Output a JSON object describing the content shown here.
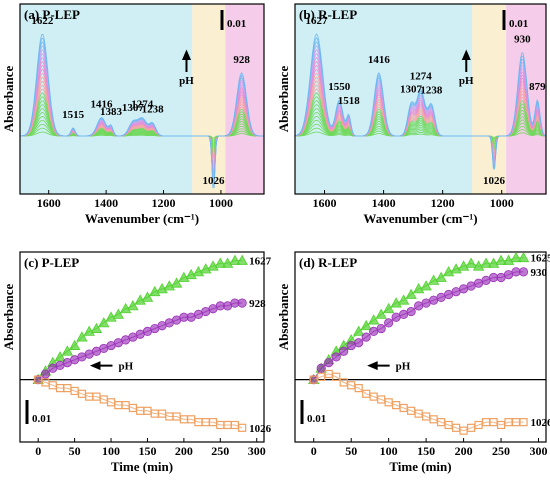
{
  "chart_data": [
    {
      "id": "a",
      "type": "line",
      "title": "(a) P-LEP",
      "xlabel": "Wavenumber (cm⁻¹)",
      "ylabel": "Absorbance",
      "xlim": [
        1700,
        850
      ],
      "xticks": [
        1600,
        1400,
        1200,
        1000
      ],
      "scale_bar": "0.01",
      "ph_label": "pH",
      "ph_arrow": "up",
      "shaded_regions": [
        {
          "from": 1700,
          "to": 1100,
          "color": "#cfeff5"
        },
        {
          "from": 1100,
          "to": 985,
          "color": "#fbefd2"
        },
        {
          "from": 985,
          "to": 850,
          "color": "#f5cdea"
        }
      ],
      "annotations": [
        "1622",
        "1515",
        "1416",
        "1383",
        "1307",
        "1274",
        "1238",
        "1026",
        "928"
      ],
      "peaks": [
        {
          "x": 1622,
          "amp": 1.0,
          "w": 28
        },
        {
          "x": 1515,
          "amp": 0.08,
          "w": 10
        },
        {
          "x": 1416,
          "amp": 0.18,
          "w": 22
        },
        {
          "x": 1383,
          "amp": 0.09,
          "w": 10
        },
        {
          "x": 1307,
          "amp": 0.13,
          "w": 20
        },
        {
          "x": 1274,
          "amp": 0.17,
          "w": 22
        },
        {
          "x": 1238,
          "amp": 0.12,
          "w": 16
        },
        {
          "x": 1026,
          "amp": -0.55,
          "w": 7
        },
        {
          "x": 928,
          "amp": 0.62,
          "w": 24
        }
      ],
      "n_curves": 26,
      "curve_colors": [
        "#6fd85a",
        "#f4a3a3",
        "#e98ad3",
        "#6fb8f0",
        "#c9a0f0"
      ]
    },
    {
      "id": "b",
      "type": "line",
      "title": "(b) R-LEP",
      "xlabel": "Wavenumber (cm⁻¹)",
      "ylabel": "Absorbance",
      "xlim": [
        1700,
        850
      ],
      "xticks": [
        1600,
        1400,
        1200,
        1000
      ],
      "scale_bar": "0.01",
      "ph_label": "pH",
      "ph_arrow": "up",
      "shaded_regions": [
        {
          "from": 1700,
          "to": 1100,
          "color": "#cfeff5"
        },
        {
          "from": 1100,
          "to": 985,
          "color": "#fbefd2"
        },
        {
          "from": 985,
          "to": 850,
          "color": "#f5cdea"
        }
      ],
      "annotations": [
        "1627",
        "1550",
        "1518",
        "1416",
        "1307",
        "1274",
        "1238",
        "1026",
        "930",
        "879"
      ],
      "peaks": [
        {
          "x": 1627,
          "amp": 1.0,
          "w": 30
        },
        {
          "x": 1550,
          "amp": 0.35,
          "w": 18
        },
        {
          "x": 1518,
          "amp": 0.2,
          "w": 10
        },
        {
          "x": 1416,
          "amp": 0.62,
          "w": 22
        },
        {
          "x": 1307,
          "amp": 0.3,
          "w": 16
        },
        {
          "x": 1274,
          "amp": 0.45,
          "w": 20
        },
        {
          "x": 1238,
          "amp": 0.3,
          "w": 16
        },
        {
          "x": 1026,
          "amp": -0.35,
          "w": 7
        },
        {
          "x": 930,
          "amp": 0.82,
          "w": 22
        },
        {
          "x": 879,
          "amp": 0.35,
          "w": 12
        }
      ],
      "n_curves": 26,
      "curve_colors": [
        "#6fd85a",
        "#f4a3a3",
        "#e98ad3",
        "#6fb8f0",
        "#c9a0f0"
      ]
    },
    {
      "id": "c",
      "type": "scatter",
      "title": "(c) P-LEP",
      "xlabel": "Time (min)",
      "ylabel": "Absorbance",
      "xlim": [
        -25,
        310
      ],
      "ylim": [
        -0.022,
        0.045
      ],
      "xticks": [
        0,
        50,
        100,
        150,
        200,
        250,
        300
      ],
      "scale_bar": "0.01",
      "ph_label": "pH",
      "ph_arrow": "left",
      "series": [
        {
          "name": "1627",
          "marker": "triangle",
          "color": "#4fd12c",
          "x": [
            0,
            10,
            20,
            30,
            40,
            50,
            60,
            70,
            80,
            90,
            100,
            110,
            120,
            130,
            140,
            150,
            160,
            170,
            180,
            190,
            200,
            210,
            220,
            230,
            240,
            250,
            260,
            270,
            280
          ],
          "values": [
            0.0,
            0.003,
            0.006,
            0.008,
            0.01,
            0.012,
            0.015,
            0.017,
            0.018,
            0.02,
            0.022,
            0.023,
            0.025,
            0.026,
            0.028,
            0.029,
            0.031,
            0.032,
            0.033,
            0.034,
            0.036,
            0.037,
            0.038,
            0.039,
            0.04,
            0.041,
            0.041,
            0.042,
            0.042
          ]
        },
        {
          "name": "928",
          "marker": "circle",
          "color": "#9a2fb8",
          "x": [
            0,
            10,
            20,
            30,
            40,
            50,
            60,
            70,
            80,
            90,
            100,
            110,
            120,
            130,
            140,
            150,
            160,
            170,
            180,
            190,
            200,
            210,
            220,
            230,
            240,
            250,
            260,
            270,
            280
          ],
          "values": [
            0.0,
            0.002,
            0.004,
            0.005,
            0.006,
            0.007,
            0.008,
            0.009,
            0.01,
            0.011,
            0.012,
            0.013,
            0.014,
            0.015,
            0.016,
            0.017,
            0.018,
            0.019,
            0.02,
            0.021,
            0.022,
            0.022,
            0.023,
            0.024,
            0.025,
            0.026,
            0.026,
            0.027,
            0.027
          ]
        },
        {
          "name": "1026",
          "marker": "square",
          "color": "#f0a060",
          "x": [
            0,
            10,
            20,
            30,
            40,
            50,
            60,
            70,
            80,
            90,
            100,
            110,
            120,
            130,
            140,
            150,
            160,
            170,
            180,
            190,
            200,
            210,
            220,
            230,
            240,
            250,
            260,
            270,
            280
          ],
          "values": [
            0.0,
            -0.001,
            -0.002,
            -0.003,
            -0.003,
            -0.004,
            -0.005,
            -0.006,
            -0.006,
            -0.007,
            -0.008,
            -0.009,
            -0.009,
            -0.01,
            -0.011,
            -0.011,
            -0.012,
            -0.012,
            -0.013,
            -0.013,
            -0.014,
            -0.014,
            -0.015,
            -0.015,
            -0.015,
            -0.016,
            -0.016,
            -0.016,
            -0.017
          ]
        }
      ]
    },
    {
      "id": "d",
      "type": "scatter",
      "title": "(d) R-LEP",
      "xlabel": "Time (min)",
      "ylabel": "Absorbance",
      "xlim": [
        -25,
        310
      ],
      "ylim": [
        -0.022,
        0.045
      ],
      "xticks": [
        0,
        50,
        100,
        150,
        200,
        250,
        300
      ],
      "scale_bar": "0.01",
      "ph_label": "pH",
      "ph_arrow": "left",
      "series": [
        {
          "name": "1625",
          "marker": "triangle",
          "color": "#4fd12c",
          "x": [
            0,
            10,
            20,
            30,
            40,
            50,
            60,
            70,
            80,
            90,
            100,
            110,
            120,
            130,
            140,
            150,
            160,
            170,
            180,
            190,
            200,
            210,
            220,
            230,
            240,
            250,
            260,
            270,
            280
          ],
          "values": [
            0.0,
            0.004,
            0.007,
            0.01,
            0.012,
            0.014,
            0.017,
            0.019,
            0.021,
            0.023,
            0.025,
            0.027,
            0.028,
            0.03,
            0.032,
            0.033,
            0.035,
            0.036,
            0.038,
            0.039,
            0.04,
            0.041,
            0.04,
            0.041,
            0.041,
            0.042,
            0.042,
            0.043,
            0.043
          ]
        },
        {
          "name": "930",
          "marker": "circle",
          "color": "#9a2fb8",
          "x": [
            0,
            10,
            20,
            30,
            40,
            50,
            60,
            70,
            80,
            90,
            100,
            110,
            120,
            130,
            140,
            150,
            160,
            170,
            180,
            190,
            200,
            210,
            220,
            230,
            240,
            250,
            260,
            270,
            280
          ],
          "values": [
            0.0,
            0.004,
            0.006,
            0.008,
            0.01,
            0.012,
            0.013,
            0.015,
            0.017,
            0.018,
            0.02,
            0.022,
            0.023,
            0.024,
            0.026,
            0.027,
            0.028,
            0.029,
            0.03,
            0.031,
            0.032,
            0.033,
            0.034,
            0.035,
            0.036,
            0.036,
            0.037,
            0.038,
            0.038
          ]
        },
        {
          "name": "1026",
          "marker": "square",
          "color": "#f0a060",
          "x": [
            0,
            10,
            20,
            30,
            40,
            50,
            60,
            70,
            80,
            90,
            100,
            110,
            120,
            130,
            140,
            150,
            160,
            170,
            180,
            190,
            200,
            210,
            220,
            230,
            240,
            250,
            260,
            270,
            280
          ],
          "values": [
            0.0,
            0.001,
            0.002,
            0.001,
            -0.001,
            -0.002,
            -0.003,
            -0.005,
            -0.006,
            -0.007,
            -0.008,
            -0.009,
            -0.01,
            -0.011,
            -0.012,
            -0.013,
            -0.014,
            -0.015,
            -0.016,
            -0.017,
            -0.018,
            -0.017,
            -0.016,
            -0.015,
            -0.015,
            -0.016,
            -0.015,
            -0.015,
            -0.015
          ]
        }
      ]
    }
  ]
}
